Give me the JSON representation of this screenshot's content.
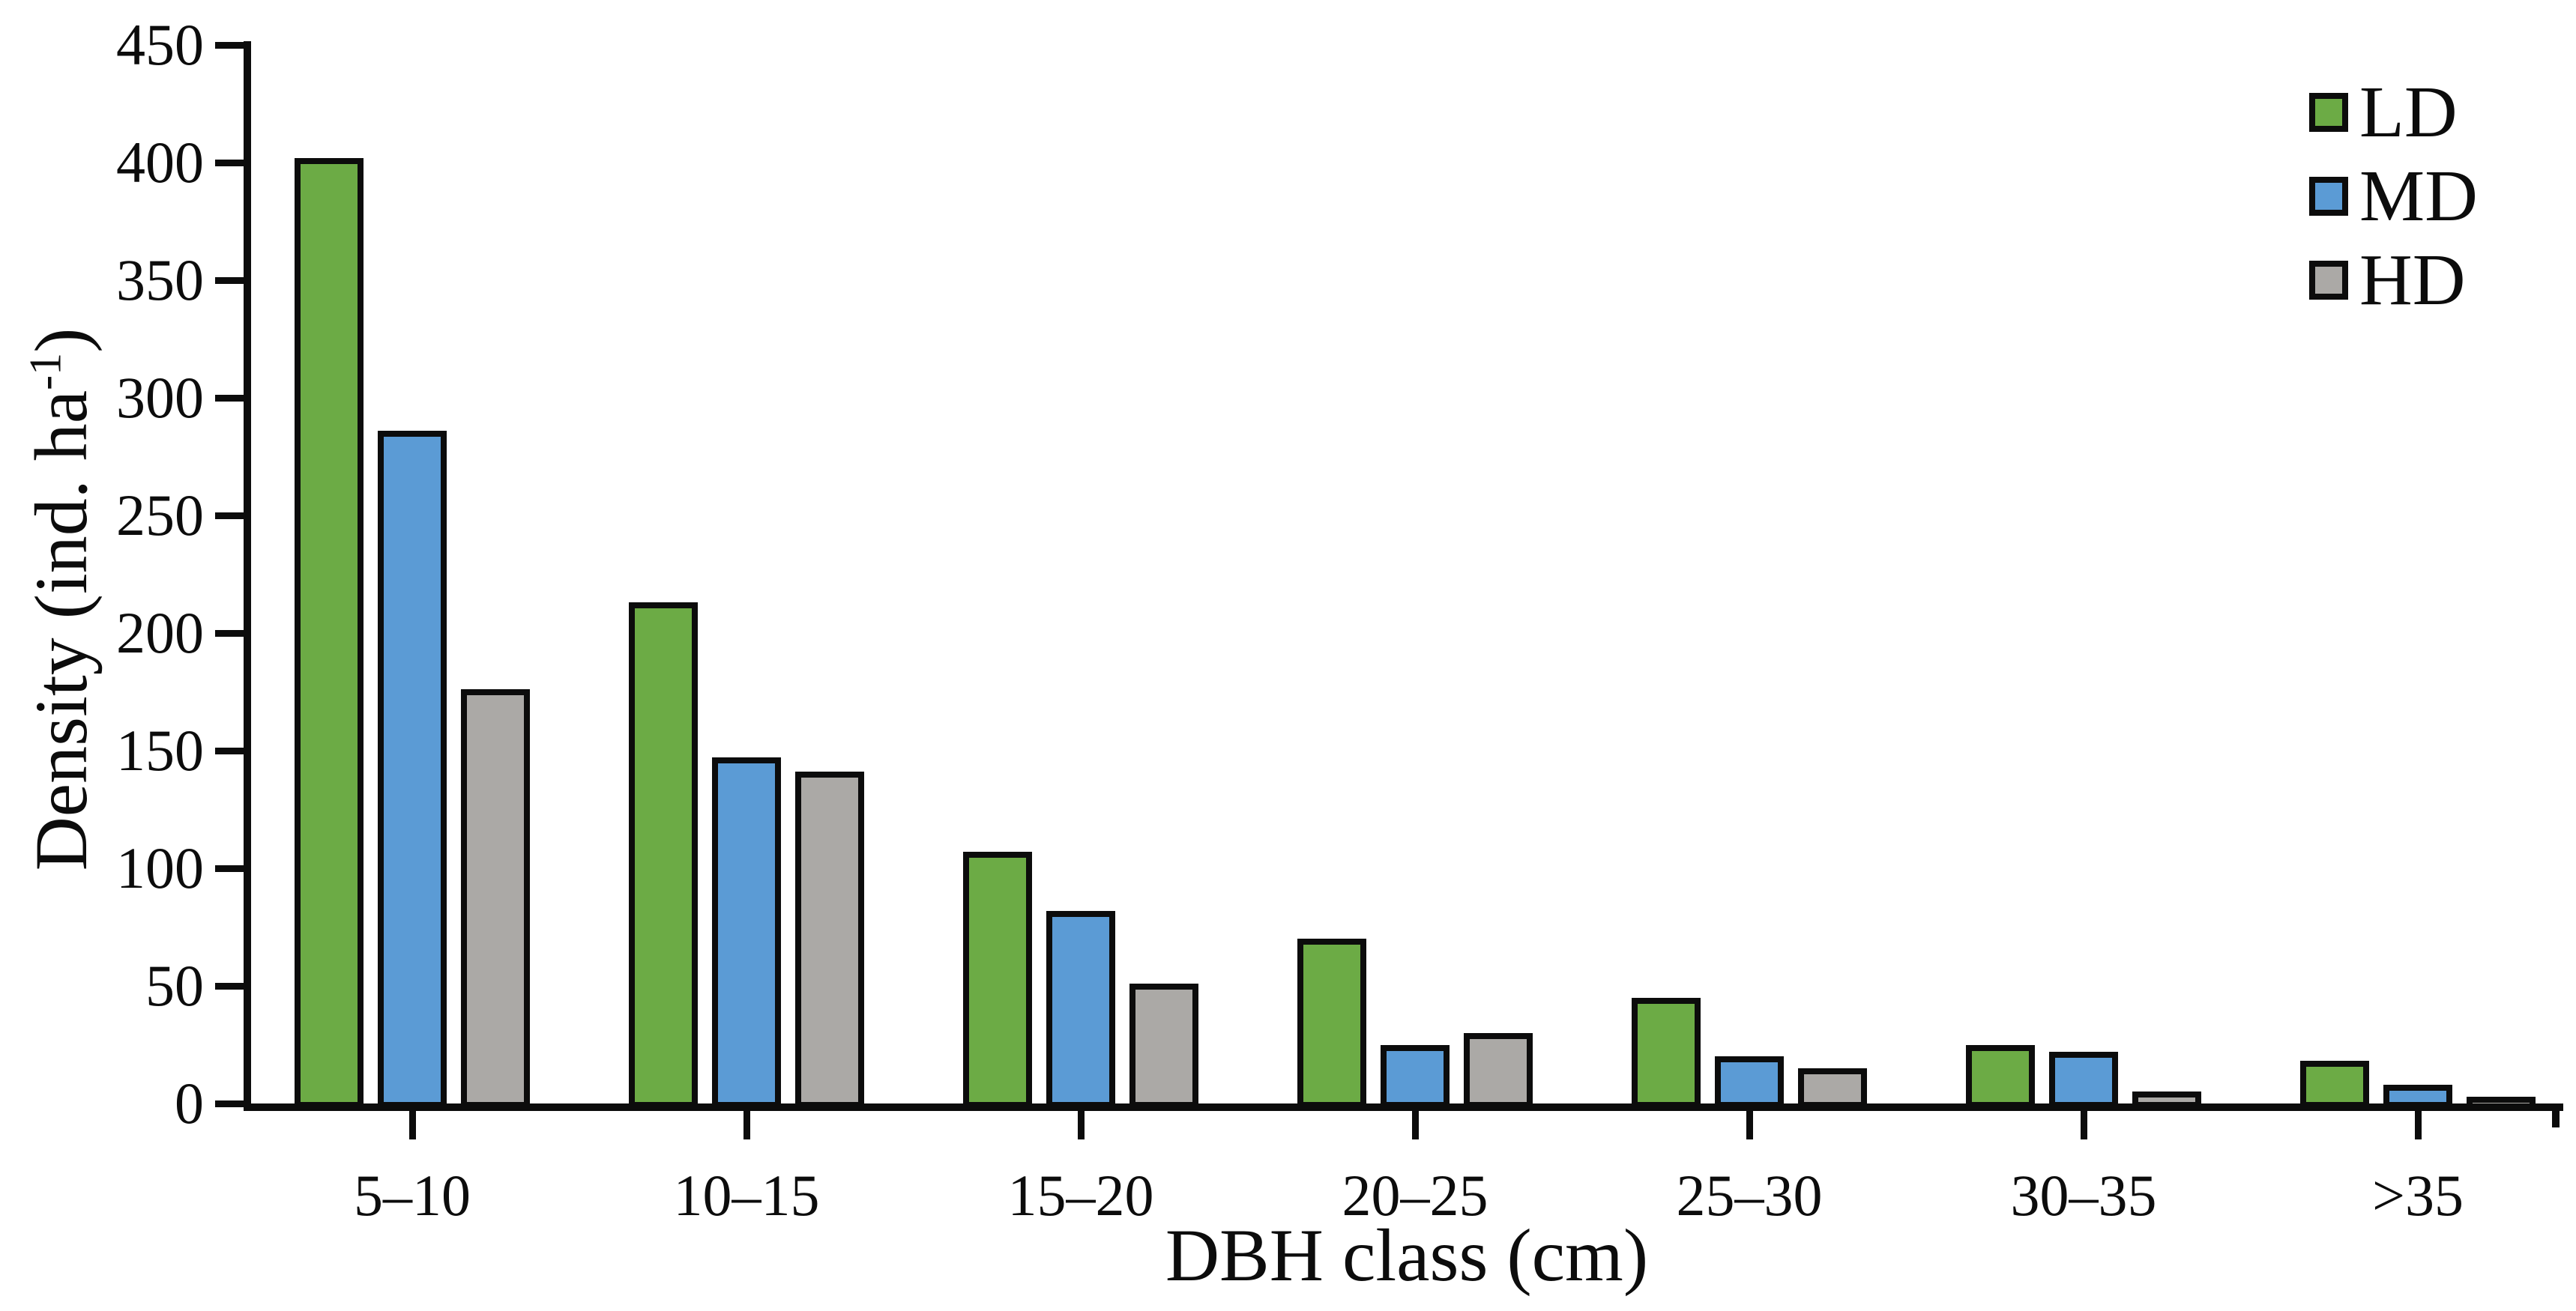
{
  "figure": {
    "background": "#ffffff",
    "text_color": "#0c0c0c"
  },
  "chart_data": {
    "type": "bar",
    "title": "",
    "categories": [
      "5–10",
      "10–15",
      "15–20",
      "20–25",
      "25–30",
      "30–35",
      ">35"
    ],
    "series": [
      {
        "name": "LD",
        "color": "#6CAB45",
        "values": [
          402,
          213,
          107,
          70,
          45,
          25,
          18
        ]
      },
      {
        "name": "MD",
        "color": "#5B9BD5",
        "values": [
          286,
          147,
          82,
          25,
          20,
          22,
          8
        ]
      },
      {
        "name": "HD",
        "color": "#ABA9A6",
        "values": [
          176,
          141,
          51,
          30,
          15,
          5,
          3
        ]
      }
    ],
    "xlabel": "DBH class (cm)",
    "ylabel": {
      "pre": "Density (ind. ha",
      "sup": "-1",
      "post": ")"
    },
    "ylim": [
      0,
      450
    ],
    "ytick_step": 50,
    "y_tick_labels": [
      "450",
      "400",
      "350",
      "300",
      "250",
      "200",
      "150",
      "100",
      "50",
      "0"
    ],
    "grid": false,
    "bar_border_color": "#0c0c0c",
    "axis_color": "#0c0c0c",
    "legend": {
      "position": "top-right",
      "entries": [
        "LD",
        "MD",
        "HD"
      ]
    }
  }
}
